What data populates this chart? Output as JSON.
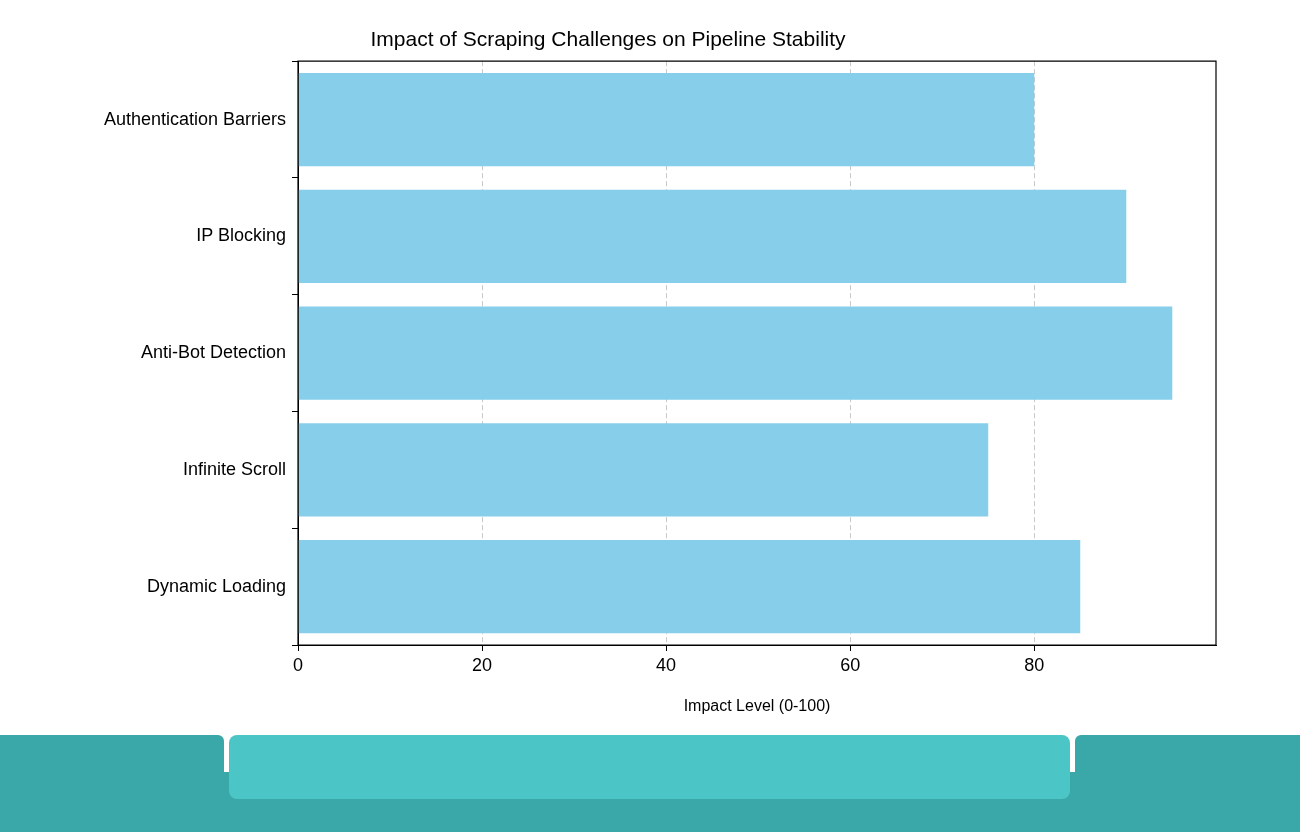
{
  "chart_data": {
    "type": "bar",
    "orientation": "horizontal",
    "title": "Impact of Scraping Challenges on Pipeline Stability",
    "xlabel": "Impact Level (0-100)",
    "categories": [
      "Authentication Barriers",
      "IP Blocking",
      "Anti-Bot Detection",
      "Infinite Scroll",
      "Dynamic Loading"
    ],
    "values": [
      80,
      90,
      95,
      75,
      85
    ],
    "color": "#87ceeb",
    "xlim": [
      0,
      99.75
    ],
    "xticks": [
      0,
      20,
      40,
      60,
      80
    ],
    "grid": "x"
  }
}
